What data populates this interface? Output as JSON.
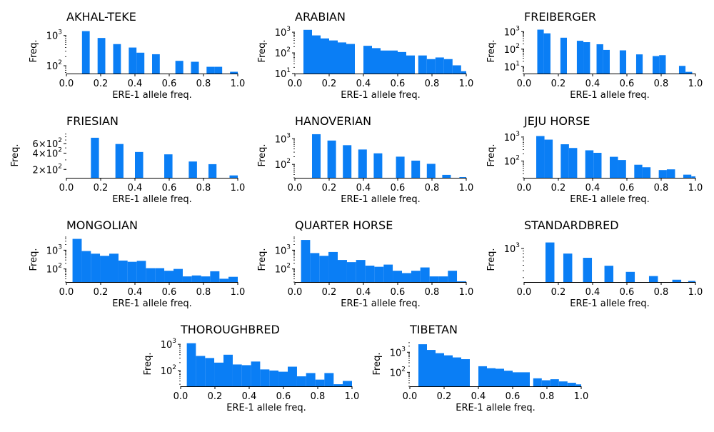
{
  "bar_color": "#0a7ef5",
  "chart_data": [
    {
      "type": "bar",
      "title": "AKHAL-TEKE",
      "xlabel": "ERE-1 allele freq.",
      "ylabel": "Freq.",
      "yscale": "log",
      "xlim": [
        0,
        1
      ],
      "ylim": [
        55,
        1700
      ],
      "yticks": [
        100,
        1000
      ],
      "ytick_labels": [
        "10^2",
        "10^3"
      ],
      "xticks": [
        0,
        0.2,
        0.4,
        0.6,
        0.8,
        1
      ],
      "xtick_labels": [
        "0.0",
        "0.2",
        "0.4",
        "0.6",
        "0.8",
        "1.0"
      ],
      "bins": [
        [
          0.091,
          0.136,
          1400
        ],
        [
          0.182,
          0.227,
          830
        ],
        [
          0.273,
          0.318,
          520
        ],
        [
          0.364,
          0.409,
          400
        ],
        [
          0.409,
          0.455,
          270
        ],
        [
          0.5,
          0.545,
          240
        ],
        [
          0.636,
          0.682,
          145
        ],
        [
          0.727,
          0.773,
          135
        ],
        [
          0.818,
          0.864,
          92
        ],
        [
          0.864,
          0.909,
          92
        ],
        [
          0.955,
          1.0,
          63
        ]
      ]
    },
    {
      "type": "bar",
      "title": "ARABIAN",
      "xlabel": "ERE-1 allele freq.",
      "ylabel": "Freq.",
      "yscale": "log",
      "xlim": [
        0,
        1
      ],
      "ylim": [
        10,
        1500
      ],
      "yticks": [
        10,
        100,
        1000
      ],
      "ytick_labels": [
        "10^1",
        "10^2",
        "10^3"
      ],
      "xticks": [
        0,
        0.2,
        0.4,
        0.6,
        0.8,
        1
      ],
      "xtick_labels": [
        "0.0",
        "0.2",
        "0.4",
        "0.6",
        "0.8",
        "1.0"
      ],
      "bins": [
        [
          0.05,
          0.1,
          1300
        ],
        [
          0.1,
          0.15,
          700
        ],
        [
          0.15,
          0.2,
          500
        ],
        [
          0.2,
          0.25,
          400
        ],
        [
          0.25,
          0.3,
          320
        ],
        [
          0.3,
          0.35,
          270
        ],
        [
          0.4,
          0.45,
          220
        ],
        [
          0.45,
          0.5,
          170
        ],
        [
          0.5,
          0.55,
          130
        ],
        [
          0.55,
          0.6,
          130
        ],
        [
          0.6,
          0.65,
          110
        ],
        [
          0.65,
          0.7,
          75
        ],
        [
          0.72,
          0.77,
          75
        ],
        [
          0.77,
          0.82,
          50
        ],
        [
          0.82,
          0.87,
          60
        ],
        [
          0.87,
          0.92,
          50
        ],
        [
          0.92,
          0.97,
          25
        ],
        [
          0.97,
          1.0,
          13
        ]
      ]
    },
    {
      "type": "bar",
      "title": "FREIBERGER",
      "xlabel": "ERE-1 allele freq.",
      "ylabel": "Freq.",
      "yscale": "log",
      "xlim": [
        0,
        1
      ],
      "ylim": [
        4,
        1500
      ],
      "yticks": [
        10,
        100,
        1000
      ],
      "ytick_labels": [
        "10^1",
        "10^2",
        "10^3"
      ],
      "xticks": [
        0,
        0.2,
        0.4,
        0.6,
        0.8,
        1
      ],
      "xtick_labels": [
        "0.0",
        "0.2",
        "0.4",
        "0.6",
        "0.8",
        "1.0"
      ],
      "bins": [
        [
          0.077,
          0.115,
          1300
        ],
        [
          0.115,
          0.154,
          800
        ],
        [
          0.212,
          0.25,
          450
        ],
        [
          0.308,
          0.346,
          300
        ],
        [
          0.346,
          0.385,
          250
        ],
        [
          0.423,
          0.462,
          190
        ],
        [
          0.462,
          0.5,
          90
        ],
        [
          0.558,
          0.596,
          85
        ],
        [
          0.654,
          0.692,
          50
        ],
        [
          0.75,
          0.788,
          40
        ],
        [
          0.788,
          0.827,
          45
        ],
        [
          0.904,
          0.942,
          11
        ],
        [
          0.942,
          0.981,
          5
        ]
      ]
    },
    {
      "type": "bar",
      "title": "FRIESIAN",
      "xlabel": "ERE-1 allele freq.",
      "ylabel": "Freq.",
      "yscale": "log",
      "xlim": [
        0,
        1
      ],
      "ylim": [
        140,
        950
      ],
      "yticks": [
        200,
        400,
        600
      ],
      "ytick_labels": [
        "2×10^2",
        "4×10^2",
        "6×10^2"
      ],
      "xticks": [
        0,
        0.2,
        0.4,
        0.6,
        0.8,
        1
      ],
      "xtick_labels": [
        "0.0",
        "0.2",
        "0.4",
        "0.6",
        "0.8",
        "1.0"
      ],
      "bins": [
        [
          0.143,
          0.19,
          770
        ],
        [
          0.286,
          0.333,
          590
        ],
        [
          0.4,
          0.448,
          420
        ],
        [
          0.571,
          0.619,
          380
        ],
        [
          0.714,
          0.762,
          280
        ],
        [
          0.829,
          0.876,
          250
        ],
        [
          0.952,
          1.0,
          155
        ]
      ]
    },
    {
      "type": "bar",
      "title": "HANOVERIAN",
      "xlabel": "ERE-1 allele freq.",
      "ylabel": "Freq.",
      "yscale": "log",
      "xlim": [
        0,
        1
      ],
      "ylim": [
        30,
        1700
      ],
      "yticks": [
        100,
        1000
      ],
      "ytick_labels": [
        "10^2",
        "10^3"
      ],
      "xticks": [
        0,
        0.2,
        0.4,
        0.6,
        0.8,
        1
      ],
      "xtick_labels": [
        "0.0",
        "0.2",
        "0.4",
        "0.6",
        "0.8",
        "1.0"
      ],
      "bins": [
        [
          0.1,
          0.15,
          1500
        ],
        [
          0.19,
          0.24,
          850
        ],
        [
          0.28,
          0.33,
          560
        ],
        [
          0.37,
          0.42,
          380
        ],
        [
          0.46,
          0.51,
          270
        ],
        [
          0.59,
          0.64,
          200
        ],
        [
          0.68,
          0.73,
          140
        ],
        [
          0.77,
          0.82,
          105
        ],
        [
          0.86,
          0.91,
          39
        ],
        [
          0.96,
          1.0,
          32
        ]
      ]
    },
    {
      "type": "bar",
      "title": "JEJU HORSE",
      "xlabel": "ERE-1 allele freq.",
      "ylabel": "Freq.",
      "yscale": "log",
      "xlim": [
        0,
        1
      ],
      "ylim": [
        20,
        1500
      ],
      "yticks": [
        100,
        1000
      ],
      "ytick_labels": [
        "10^2",
        "10^3"
      ],
      "xticks": [
        0,
        0.2,
        0.4,
        0.6,
        0.8,
        1
      ],
      "xtick_labels": [
        "0.0",
        "0.2",
        "0.4",
        "0.6",
        "0.8",
        "1.0"
      ],
      "bins": [
        [
          0.071,
          0.119,
          1100
        ],
        [
          0.119,
          0.167,
          780
        ],
        [
          0.214,
          0.262,
          500
        ],
        [
          0.262,
          0.31,
          350
        ],
        [
          0.357,
          0.405,
          280
        ],
        [
          0.405,
          0.452,
          220
        ],
        [
          0.5,
          0.548,
          150
        ],
        [
          0.548,
          0.595,
          110
        ],
        [
          0.643,
          0.69,
          70
        ],
        [
          0.69,
          0.738,
          55
        ],
        [
          0.786,
          0.833,
          42
        ],
        [
          0.833,
          0.881,
          45
        ],
        [
          0.929,
          0.976,
          27
        ],
        [
          0.976,
          1.0,
          23
        ]
      ]
    },
    {
      "type": "bar",
      "title": "MONGOLIAN",
      "xlabel": "ERE-1 allele freq.",
      "ylabel": "Freq.",
      "yscale": "log",
      "xlim": [
        0,
        1
      ],
      "ylim": [
        20,
        5000
      ],
      "yticks": [
        100,
        1000
      ],
      "ytick_labels": [
        "10^2",
        "10^3"
      ],
      "xticks": [
        0,
        0.2,
        0.4,
        0.6,
        0.8,
        1
      ],
      "xtick_labels": [
        "0.0",
        "0.2",
        "0.4",
        "0.6",
        "0.8",
        "1.0"
      ],
      "bins": [
        [
          0.0357,
          0.0893,
          4000
        ],
        [
          0.0893,
          0.143,
          900
        ],
        [
          0.143,
          0.196,
          650
        ],
        [
          0.196,
          0.25,
          500
        ],
        [
          0.25,
          0.304,
          650
        ],
        [
          0.304,
          0.357,
          280
        ],
        [
          0.357,
          0.411,
          240
        ],
        [
          0.411,
          0.464,
          270
        ],
        [
          0.464,
          0.518,
          110
        ],
        [
          0.518,
          0.571,
          110
        ],
        [
          0.571,
          0.625,
          80
        ],
        [
          0.625,
          0.679,
          100
        ],
        [
          0.679,
          0.732,
          40
        ],
        [
          0.732,
          0.786,
          45
        ],
        [
          0.786,
          0.839,
          40
        ],
        [
          0.839,
          0.893,
          75
        ],
        [
          0.893,
          0.946,
          30
        ],
        [
          0.946,
          1.0,
          38
        ]
      ]
    },
    {
      "type": "bar",
      "title": "QUARTER HORSE",
      "xlabel": "ERE-1 allele freq.",
      "ylabel": "Freq.",
      "yscale": "log",
      "xlim": [
        0,
        1
      ],
      "ylim": [
        20,
        5000
      ],
      "yticks": [
        100,
        1000
      ],
      "ytick_labels": [
        "10^2",
        "10^3"
      ],
      "xticks": [
        0,
        0.2,
        0.4,
        0.6,
        0.8,
        1
      ],
      "xtick_labels": [
        "0.0",
        "0.2",
        "0.4",
        "0.6",
        "0.8",
        "1.0"
      ],
      "bins": [
        [
          0.036,
          0.089,
          3500
        ],
        [
          0.089,
          0.143,
          700
        ],
        [
          0.143,
          0.196,
          500
        ],
        [
          0.196,
          0.25,
          800
        ],
        [
          0.25,
          0.304,
          300
        ],
        [
          0.304,
          0.357,
          230
        ],
        [
          0.357,
          0.411,
          300
        ],
        [
          0.411,
          0.464,
          150
        ],
        [
          0.464,
          0.518,
          130
        ],
        [
          0.518,
          0.571,
          170
        ],
        [
          0.571,
          0.625,
          80
        ],
        [
          0.625,
          0.679,
          60
        ],
        [
          0.679,
          0.732,
          80
        ],
        [
          0.732,
          0.786,
          120
        ],
        [
          0.786,
          0.839,
          40
        ],
        [
          0.839,
          0.893,
          40
        ],
        [
          0.893,
          0.946,
          80
        ],
        [
          0.946,
          1.0,
          22
        ]
      ]
    },
    {
      "type": "bar",
      "title": "STANDARDBRED",
      "xlabel": "ERE-1 allele freq.",
      "ylabel": "Freq.",
      "yscale": "log",
      "xlim": [
        0,
        1
      ],
      "ylim": [
        250,
        1600
      ],
      "yticks": [
        1000
      ],
      "ytick_labels": [
        "10^3"
      ],
      "xticks": [
        0,
        0.2,
        0.4,
        0.6,
        0.8,
        1
      ],
      "xtick_labels": [
        "0.0",
        "0.2",
        "0.4",
        "0.6",
        "0.8",
        "1.0"
      ],
      "bins": [
        [
          0.125,
          0.177,
          1280
        ],
        [
          0.229,
          0.281,
          810
        ],
        [
          0.344,
          0.396,
          680
        ],
        [
          0.469,
          0.521,
          490
        ],
        [
          0.594,
          0.646,
          380
        ],
        [
          0.729,
          0.781,
          320
        ],
        [
          0.865,
          0.917,
          275
        ],
        [
          0.958,
          1.0,
          262
        ]
      ]
    },
    {
      "type": "bar",
      "title": "THOROUGHBRED",
      "xlabel": "ERE-1 allele freq.",
      "ylabel": "Freq.",
      "yscale": "log",
      "xlim": [
        0,
        1
      ],
      "ylim": [
        25,
        1300
      ],
      "yticks": [
        100,
        1000
      ],
      "ytick_labels": [
        "10^2",
        "10^3"
      ],
      "xticks": [
        0,
        0.2,
        0.4,
        0.6,
        0.8,
        1
      ],
      "xtick_labels": [
        "0.0",
        "0.2",
        "0.4",
        "0.6",
        "0.8",
        "1.0"
      ],
      "bins": [
        [
          0.036,
          0.089,
          1100
        ],
        [
          0.089,
          0.143,
          360
        ],
        [
          0.143,
          0.196,
          300
        ],
        [
          0.196,
          0.25,
          200
        ],
        [
          0.25,
          0.304,
          400
        ],
        [
          0.304,
          0.357,
          170
        ],
        [
          0.357,
          0.411,
          160
        ],
        [
          0.411,
          0.464,
          220
        ],
        [
          0.464,
          0.518,
          110
        ],
        [
          0.518,
          0.571,
          100
        ],
        [
          0.571,
          0.625,
          90
        ],
        [
          0.625,
          0.679,
          140
        ],
        [
          0.679,
          0.732,
          60
        ],
        [
          0.732,
          0.786,
          80
        ],
        [
          0.786,
          0.839,
          45
        ],
        [
          0.839,
          0.893,
          80
        ],
        [
          0.893,
          0.946,
          30
        ],
        [
          0.946,
          1.0,
          40
        ]
      ]
    },
    {
      "type": "bar",
      "title": "TIBETAN",
      "xlabel": "ERE-1 allele freq.",
      "ylabel": "Freq.",
      "yscale": "log",
      "xlim": [
        0,
        1
      ],
      "ylim": [
        20,
        3500
      ],
      "yticks": [
        100,
        1000
      ],
      "ytick_labels": [
        "10^2",
        "10^3"
      ],
      "xticks": [
        0,
        0.2,
        0.4,
        0.6,
        0.8,
        1
      ],
      "xtick_labels": [
        "0.0",
        "0.2",
        "0.4",
        "0.6",
        "0.8",
        "1.0"
      ],
      "bins": [
        [
          0.05,
          0.1,
          2500
        ],
        [
          0.1,
          0.15,
          1300
        ],
        [
          0.15,
          0.2,
          900
        ],
        [
          0.2,
          0.25,
          700
        ],
        [
          0.25,
          0.3,
          550
        ],
        [
          0.3,
          0.35,
          450
        ],
        [
          0.4,
          0.45,
          200
        ],
        [
          0.45,
          0.5,
          160
        ],
        [
          0.5,
          0.55,
          150
        ],
        [
          0.55,
          0.6,
          120
        ],
        [
          0.6,
          0.65,
          100
        ],
        [
          0.65,
          0.7,
          100
        ],
        [
          0.72,
          0.77,
          50
        ],
        [
          0.77,
          0.82,
          40
        ],
        [
          0.82,
          0.87,
          45
        ],
        [
          0.87,
          0.92,
          35
        ],
        [
          0.92,
          0.97,
          30
        ],
        [
          0.97,
          1.0,
          25
        ]
      ]
    }
  ]
}
